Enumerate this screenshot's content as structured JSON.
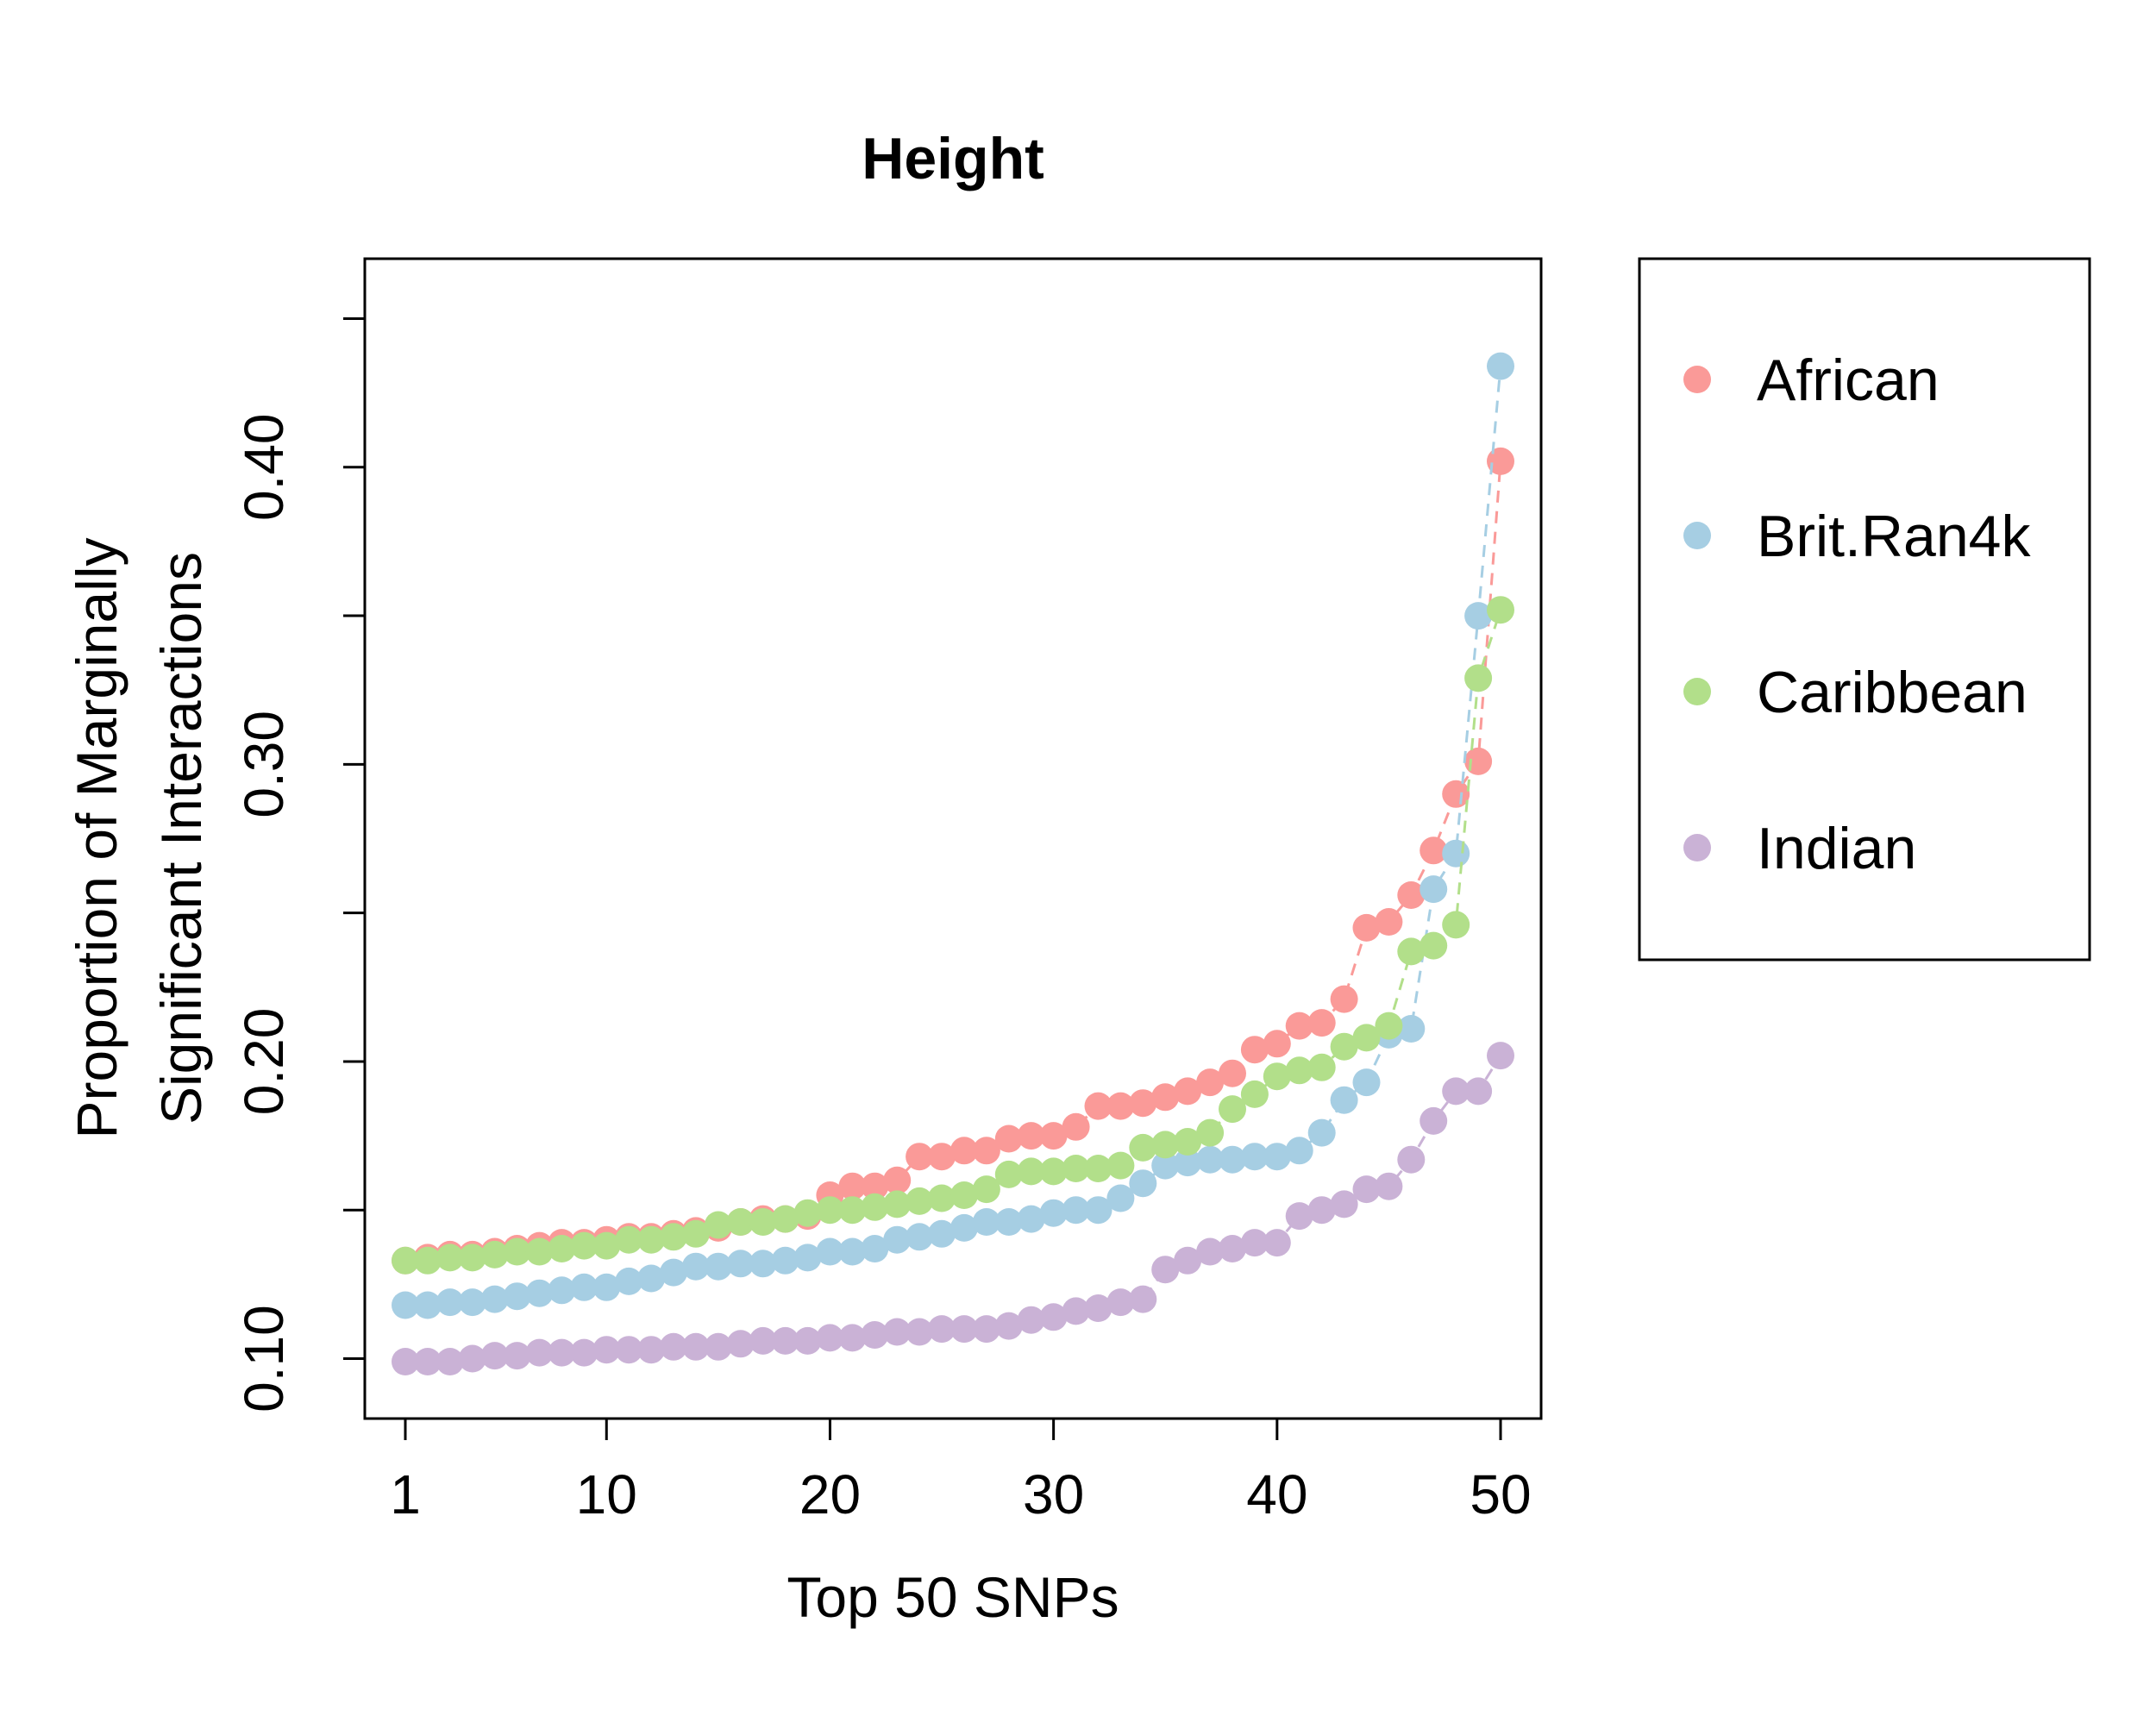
{
  "chart_data": {
    "type": "scatter",
    "title": "Height",
    "xlabel": "Top 50 SNPs",
    "ylabel_lines": [
      "Proportion of Marginally",
      "Significant Interactions"
    ],
    "xlim": [
      1,
      50
    ],
    "ylim": [
      0.09,
      0.46
    ],
    "x_ticks": [
      1,
      10,
      20,
      30,
      40,
      50
    ],
    "y_ticks": [
      0.1,
      0.15,
      0.2,
      0.25,
      0.3,
      0.35,
      0.4,
      0.45
    ],
    "y_tick_labels": [
      {
        "value": 0.1,
        "label": "0.10"
      },
      {
        "value": 0.2,
        "label": "0.20"
      },
      {
        "value": 0.3,
        "label": "0.30"
      },
      {
        "value": 0.4,
        "label": "0.40"
      }
    ],
    "legend_position": "right",
    "x": [
      1,
      2,
      3,
      4,
      5,
      6,
      7,
      8,
      9,
      10,
      11,
      12,
      13,
      14,
      15,
      16,
      17,
      18,
      19,
      20,
      21,
      22,
      23,
      24,
      25,
      26,
      27,
      28,
      29,
      30,
      31,
      32,
      33,
      34,
      35,
      36,
      37,
      38,
      39,
      40,
      41,
      42,
      43,
      44,
      45,
      46,
      47,
      48,
      49,
      50
    ],
    "series": [
      {
        "name": "African",
        "color": "#FA9A98",
        "values": [
          0.133,
          0.134,
          0.135,
          0.135,
          0.136,
          0.137,
          0.138,
          0.139,
          0.139,
          0.14,
          0.141,
          0.141,
          0.142,
          0.143,
          0.144,
          0.146,
          0.147,
          0.147,
          0.148,
          0.155,
          0.158,
          0.158,
          0.16,
          0.168,
          0.168,
          0.17,
          0.17,
          0.174,
          0.175,
          0.175,
          0.178,
          0.185,
          0.185,
          0.186,
          0.188,
          0.19,
          0.193,
          0.196,
          0.204,
          0.206,
          0.212,
          0.213,
          0.221,
          0.245,
          0.247,
          0.256,
          0.271,
          0.29,
          0.301,
          0.402
        ]
      },
      {
        "name": "Brit.Ran4k",
        "color": "#A6CEE3",
        "values": [
          0.118,
          0.118,
          0.119,
          0.119,
          0.12,
          0.121,
          0.122,
          0.123,
          0.124,
          0.124,
          0.126,
          0.127,
          0.129,
          0.131,
          0.131,
          0.132,
          0.132,
          0.133,
          0.134,
          0.136,
          0.136,
          0.137,
          0.14,
          0.141,
          0.142,
          0.144,
          0.146,
          0.146,
          0.147,
          0.149,
          0.15,
          0.15,
          0.154,
          0.159,
          0.165,
          0.166,
          0.167,
          0.167,
          0.168,
          0.168,
          0.17,
          0.176,
          0.187,
          0.193,
          0.209,
          0.211,
          0.258,
          0.27,
          0.35,
          0.434
        ]
      },
      {
        "name": "Caribbean",
        "color": "#B2DF8A",
        "values": [
          0.133,
          0.133,
          0.134,
          0.134,
          0.135,
          0.136,
          0.136,
          0.137,
          0.138,
          0.138,
          0.14,
          0.14,
          0.141,
          0.142,
          0.145,
          0.146,
          0.146,
          0.147,
          0.149,
          0.15,
          0.15,
          0.151,
          0.152,
          0.153,
          0.154,
          0.155,
          0.157,
          0.162,
          0.163,
          0.163,
          0.164,
          0.164,
          0.165,
          0.171,
          0.172,
          0.173,
          0.176,
          0.184,
          0.189,
          0.195,
          0.197,
          0.198,
          0.205,
          0.208,
          0.212,
          0.237,
          0.239,
          0.246,
          0.329,
          0.352
        ]
      },
      {
        "name": "Indian",
        "color": "#CAB2D6",
        "values": [
          0.099,
          0.099,
          0.099,
          0.1,
          0.101,
          0.101,
          0.102,
          0.102,
          0.102,
          0.103,
          0.103,
          0.103,
          0.104,
          0.104,
          0.104,
          0.105,
          0.106,
          0.106,
          0.106,
          0.107,
          0.107,
          0.108,
          0.109,
          0.109,
          0.11,
          0.11,
          0.11,
          0.111,
          0.113,
          0.114,
          0.116,
          0.117,
          0.119,
          0.12,
          0.13,
          0.133,
          0.136,
          0.137,
          0.139,
          0.139,
          0.148,
          0.15,
          0.152,
          0.157,
          0.158,
          0.167,
          0.18,
          0.19,
          0.19,
          0.202
        ]
      }
    ]
  }
}
